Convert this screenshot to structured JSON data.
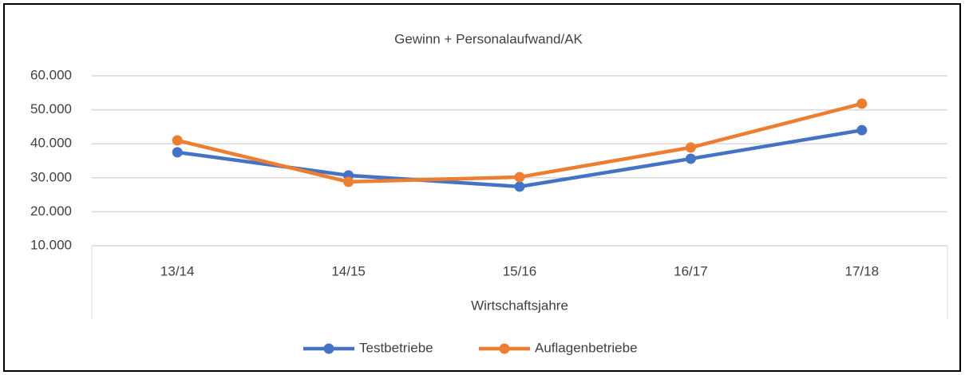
{
  "chart_data": {
    "type": "line",
    "title": "Gewinn + Personalaufwand/AK",
    "x_label": "Wirtschaftsjahre",
    "categories": [
      "13/14",
      "14/15",
      "15/16",
      "16/17",
      "17/18"
    ],
    "series": [
      {
        "name": "Testbetriebe",
        "color": "#4472c4",
        "values": [
          37500,
          30700,
          27400,
          35600,
          44000
        ]
      },
      {
        "name": "Auflagenbetriebe",
        "color": "#ed7d31",
        "values": [
          41000,
          28800,
          30200,
          38900,
          51800
        ]
      }
    ],
    "ylim": [
      10000,
      60000
    ],
    "yticks": [
      {
        "value": 10000,
        "label": "10.000"
      },
      {
        "value": 20000,
        "label": "20.000"
      },
      {
        "value": 30000,
        "label": "30.000"
      },
      {
        "value": 40000,
        "label": "40.000"
      },
      {
        "value": 50000,
        "label": "50.000"
      },
      {
        "value": 60000,
        "label": "60.000"
      }
    ],
    "grid": true,
    "legend": "bottom"
  }
}
